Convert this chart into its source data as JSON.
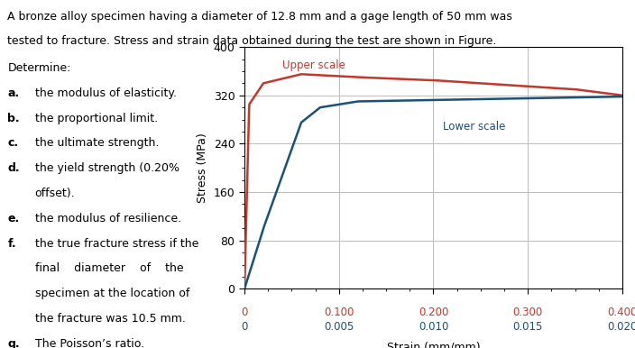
{
  "ylabel": "Stress (MPa)",
  "xlabel": "Strain (mm/mm)",
  "ylim": [
    0,
    400
  ],
  "yticks": [
    0,
    80,
    160,
    240,
    320,
    400
  ],
  "upper_scale_ticks": [
    0,
    0.1,
    0.2,
    0.3,
    0.4
  ],
  "lower_scale_ticks": [
    0,
    0.005,
    0.01,
    0.015,
    0.02
  ],
  "upper_scale_color": "#c0392b",
  "lower_scale_color": "#1a5276",
  "grid_color": "#bbbbbb",
  "upper_label": "Upper scale",
  "lower_label": "Lower scale",
  "upper_curve_color": "#c0392b",
  "lower_curve_color": "#1a5276",
  "fig_bg": "#ffffff",
  "axes_bg": "#ffffff",
  "header_lines": [
    "A bronze alloy specimen having a diameter of 12.8 mm and a gage length of 50 mm was",
    "tested to fracture. Stress and strain data obtained during the test are shown in Figure."
  ],
  "determine_label": "Determine:",
  "list_items": [
    [
      "a",
      "the modulus of elasticity."
    ],
    [
      "b",
      "the proportional limit."
    ],
    [
      "c",
      "the ultimate strength."
    ],
    [
      "d",
      "the yield strength (0.20%\n    offset)."
    ],
    [
      "e",
      "the modulus of resilience."
    ],
    [
      "f",
      "the true fracture stress if the\n    final    diameter    of    the\n    specimen at the location of\n    the fracture was 10.5 mm."
    ],
    [
      "g",
      "The Poisson’s ratio."
    ]
  ]
}
